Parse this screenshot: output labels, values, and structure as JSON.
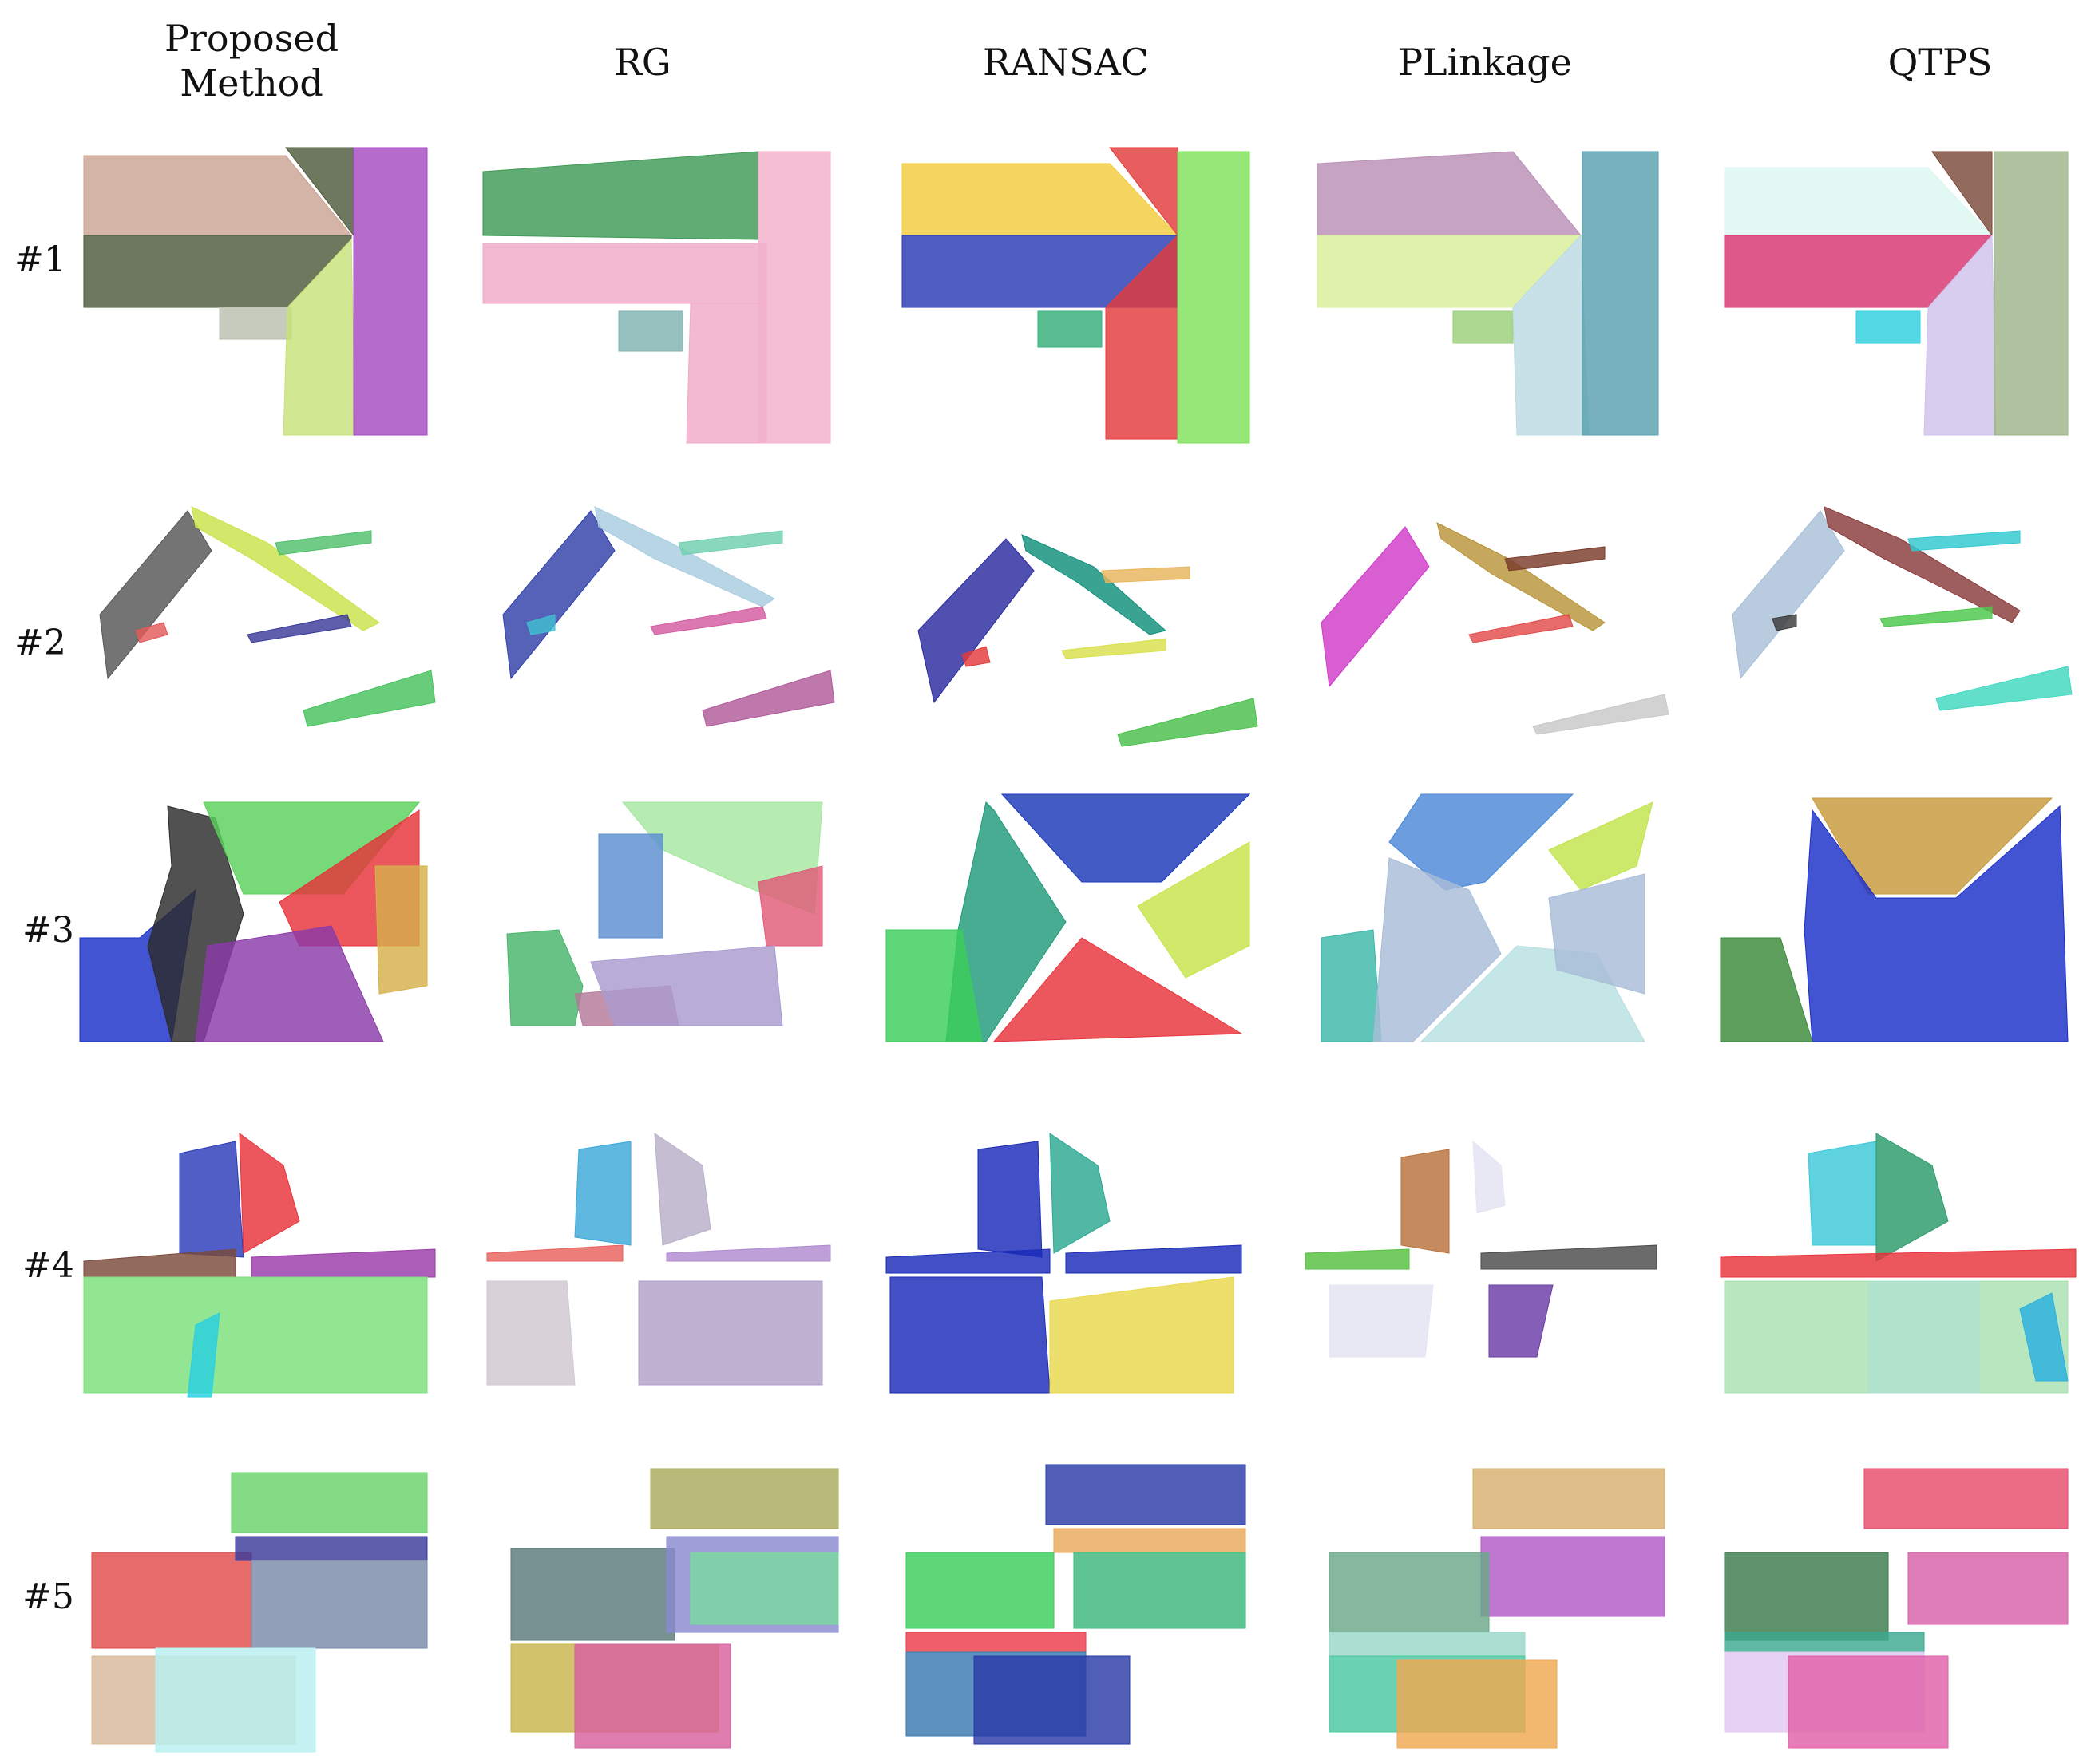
{
  "figure": {
    "columns": [
      {
        "label": "Proposed\nMethod"
      },
      {
        "label": "RG"
      },
      {
        "label": "RANSAC"
      },
      {
        "label": "PLinkage"
      },
      {
        "label": "QTPS"
      }
    ],
    "rows": [
      {
        "label": "#1"
      },
      {
        "label": "#2"
      },
      {
        "label": "#3"
      },
      {
        "label": "#4"
      },
      {
        "label": "#5"
      }
    ]
  },
  "colors": {
    "r1": [
      [
        "#c9a493",
        "#4d5a3b",
        "#c7e27a",
        "#a34bc0",
        "#5f8a6a",
        "#b9bfb0"
      ],
      [
        "#3d9a55",
        "#f0a9c8",
        "#f0a9c8",
        "#f2b0cb",
        "#7fb3b0",
        "#e39bbd"
      ],
      [
        "#f2cc3c",
        "#2a3bb4",
        "#e33b3b",
        "#7fe05a",
        "#33b07a",
        "#e33b3b"
      ],
      [
        "#b98fb5",
        "#d9ee9a",
        "#bcdbe3",
        "#5aa0b0",
        "#7c6bc0",
        "#9acf7a"
      ],
      [
        "#dcf7f0",
        "#d7356f",
        "#cfc2ec",
        "#9fb58a",
        "#2fd0e0",
        "#7a4a3a"
      ]
    ],
    "r2": [
      [
        "#555555",
        "#c9e24a",
        "#4fbf6a",
        "#3a3a9a",
        "#47c25d",
        "#e35a5a"
      ],
      [
        "#2f3fa8",
        "#a8cce0",
        "#6fd0b0",
        "#d45aa0",
        "#b05a9a",
        "#3fbfcf"
      ],
      [
        "#2a2aa0",
        "#0f8f7a",
        "#e8b55a",
        "#d8e04a",
        "#49c04a",
        "#e33a3a"
      ],
      [
        "#d03ac8",
        "#b8943a",
        "#7a3a2a",
        "#e34a4a",
        "#c8c8c8",
        "#999999"
      ],
      [
        "#a8c0d8",
        "#8a3a3a",
        "#2fc8d0",
        "#4ac84a",
        "#40d8c0",
        "#3a3a3a"
      ]
    ],
    "r3": [
      [
        "#1a2ec8",
        "#2b2b2b",
        "#59d159",
        "#e8323a",
        "#8a3aa8",
        "#d6b04a"
      ],
      [
        "#47b56a",
        "#a6e6a0",
        "#e05a78",
        "#a99bd0",
        "#5b8fd0",
        "#b57a9a"
      ],
      [
        "#1a38b8",
        "#1e9a7a",
        "#c6e44a",
        "#e8323a",
        "#3ace5a",
        "#e8323a"
      ],
      [
        "#3ab8a8",
        "#4a88d8",
        "#c2e44a",
        "#a8bcd8",
        "#b8e0e0",
        "#7a5aa0"
      ],
      [
        "#1a2ec8",
        "#c89a3a",
        "#3a8a3a",
        "#1a2ec8",
        "#d0a040",
        "#4aaa4a"
      ]
    ],
    "r4": [
      [
        "#2a3ab8",
        "#e8323a",
        "#7a4a3a",
        "#9a3aa8",
        "#7ae07a",
        "#2ad0e0"
      ],
      [
        "#3aa8d8",
        "#b8b0c8",
        "#e8605a",
        "#b08ad0",
        "#cfc8d0",
        "#b0a0c8"
      ],
      [
        "#1a2ab8",
        "#2aa890",
        "#1a2ab8",
        "#1a2ab8",
        "#e8d84a",
        "#ee6a8a"
      ],
      [
        "#b8703a",
        "#e3e3f3",
        "#55c040",
        "#4a4a4a",
        "#6a3aa8",
        "#3a8ad8"
      ],
      [
        "#3ac8d8",
        "#2a9a6a",
        "#e8323a",
        "#a8e0b0",
        "#b0e0d0",
        "#2ab0e0"
      ]
    ],
    "r5": [
      [
        "#6ad26a",
        "#e04a4a",
        "#3a3a9a",
        "#7a8aa8",
        "#d8b898",
        "#b8f0f0"
      ],
      [
        "#a8a85a",
        "#5a7a7a",
        "#7ad8a0",
        "#8a8ad0",
        "#c8b44a",
        "#d860a0"
      ],
      [
        "#2a3aa8",
        "#3ace5a",
        "#3ab87a",
        "#e8a85a",
        "#3a7ab0",
        "#ee3a4a"
      ],
      [
        "#d8b070",
        "#b05ac8",
        "#6aa88a",
        "#9ad8c8",
        "#4ac8a0",
        "#f0a850"
      ],
      [
        "#e84a6a",
        "#3a7a4a",
        "#d860a8",
        "#e0c8f0",
        "#3aa890",
        "#e060a8"
      ]
    ]
  }
}
